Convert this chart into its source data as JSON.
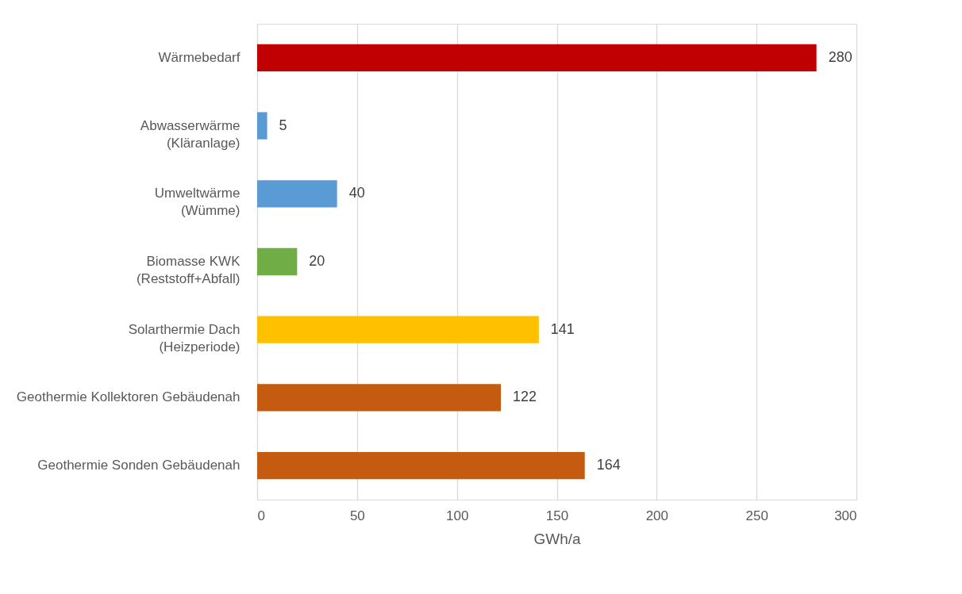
{
  "chart_data": {
    "type": "bar",
    "orientation": "horizontal",
    "xlabel": "GWh/a",
    "categories": [
      "Wärmebedarf",
      "Abwasserwärme\n(Kläranlage)",
      "Umweltwärme\n(Wümme)",
      "Biomasse KWK\n(Reststoff+Abfall)",
      "Solarthermie Dach\n(Heizperiode)",
      "Geothermie Kollektoren Gebäudenah",
      "Geothermie Sonden Gebäudenah"
    ],
    "values": [
      280,
      5,
      40,
      20,
      141,
      122,
      164
    ],
    "colors": [
      "#c00000",
      "#5b9bd5",
      "#5b9bd5",
      "#70ad47",
      "#ffc000",
      "#c55a11",
      "#c55a11"
    ],
    "xlim": [
      0,
      300
    ],
    "xticks": [
      0,
      50,
      100,
      150,
      200,
      250,
      300
    ],
    "grid": "x",
    "data_labels": true
  }
}
